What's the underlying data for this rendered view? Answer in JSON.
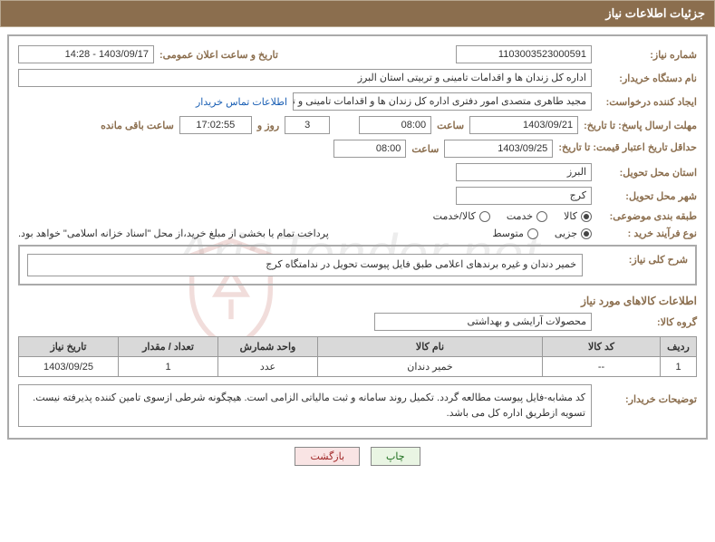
{
  "header": {
    "title": "جزئیات اطلاعات نیاز"
  },
  "meta": {
    "need_no_label": "شماره نیاز:",
    "need_no": "1103003523000591",
    "announce_label": "تاریخ و ساعت اعلان عمومی:",
    "announce": "1403/09/17 - 14:28",
    "buyer_label": "نام دستگاه خریدار:",
    "buyer": "اداره کل زندان ها و اقدامات تامینی و تربیتی استان البرز",
    "creator_label": "ایجاد کننده درخواست:",
    "creator": "مجید طاهری متصدی امور دفتری اداره کل زندان ها و اقدامات تامینی و تربیتی اس",
    "contact_link": "اطلاعات تماس خریدار"
  },
  "deadline": {
    "reply_label": "مهلت ارسال پاسخ: تا تاریخ:",
    "reply_date": "1403/09/21",
    "hour_label": "ساعت",
    "reply_hour": "08:00",
    "days": "3",
    "days_label": "روز و",
    "remain_time": "17:02:55",
    "remain_label": "ساعت باقی مانده",
    "validity_label": "حداقل تاریخ اعتبار قیمت: تا تاریخ:",
    "validity_date": "1403/09/25",
    "validity_hour": "08:00"
  },
  "location": {
    "province_label": "استان محل تحویل:",
    "province": "البرز",
    "city_label": "شهر محل تحویل:",
    "city": "کرج"
  },
  "classify": {
    "subject_label": "طبقه بندی موضوعی:",
    "options": [
      {
        "label": "کالا",
        "checked": true
      },
      {
        "label": "خدمت",
        "checked": false
      },
      {
        "label": "کالا/خدمت",
        "checked": false
      }
    ],
    "process_label": "نوع فرآیند خرید :",
    "process_options": [
      {
        "label": "جزیی",
        "checked": true
      },
      {
        "label": "متوسط",
        "checked": false
      }
    ],
    "process_note": "پرداخت تمام یا بخشی از مبلغ خرید،از محل \"اسناد خزانه اسلامی\" خواهد بود."
  },
  "overall": {
    "label": "شرح کلی نیاز:",
    "text": "خمیر دندان و غیره  برندهای اعلامی طبق فایل پیوست تحویل در ندامتگاه کرج"
  },
  "goods": {
    "section_title": "اطلاعات کالاهای مورد نیاز",
    "group_label": "گروه کالا:",
    "group": "محصولات آرایشی و بهداشتی",
    "columns": [
      "ردیف",
      "کد کالا",
      "نام کالا",
      "واحد شمارش",
      "تعداد / مقدار",
      "تاریخ نیاز"
    ],
    "rows": [
      [
        "1",
        "--",
        "خمیر دندان",
        "عدد",
        "1",
        "1403/09/25"
      ]
    ]
  },
  "note": {
    "label": "توضیحات خریدار:",
    "text": "کد مشابه-فایل پیوست مطالعه گردد. تکمیل روند سامانه و ثبت مالیاتی الزامی است. هیچگونه شرطی ازسوی تامین کننده پذیرفته نیست. تسویه ازطریق اداره کل می باشد."
  },
  "buttons": {
    "print": "چاپ",
    "back": "بازگشت"
  },
  "watermark": {
    "text": "AriaTender.net"
  },
  "table_widths": [
    "40px",
    "130px",
    "auto",
    "110px",
    "110px",
    "110px"
  ]
}
